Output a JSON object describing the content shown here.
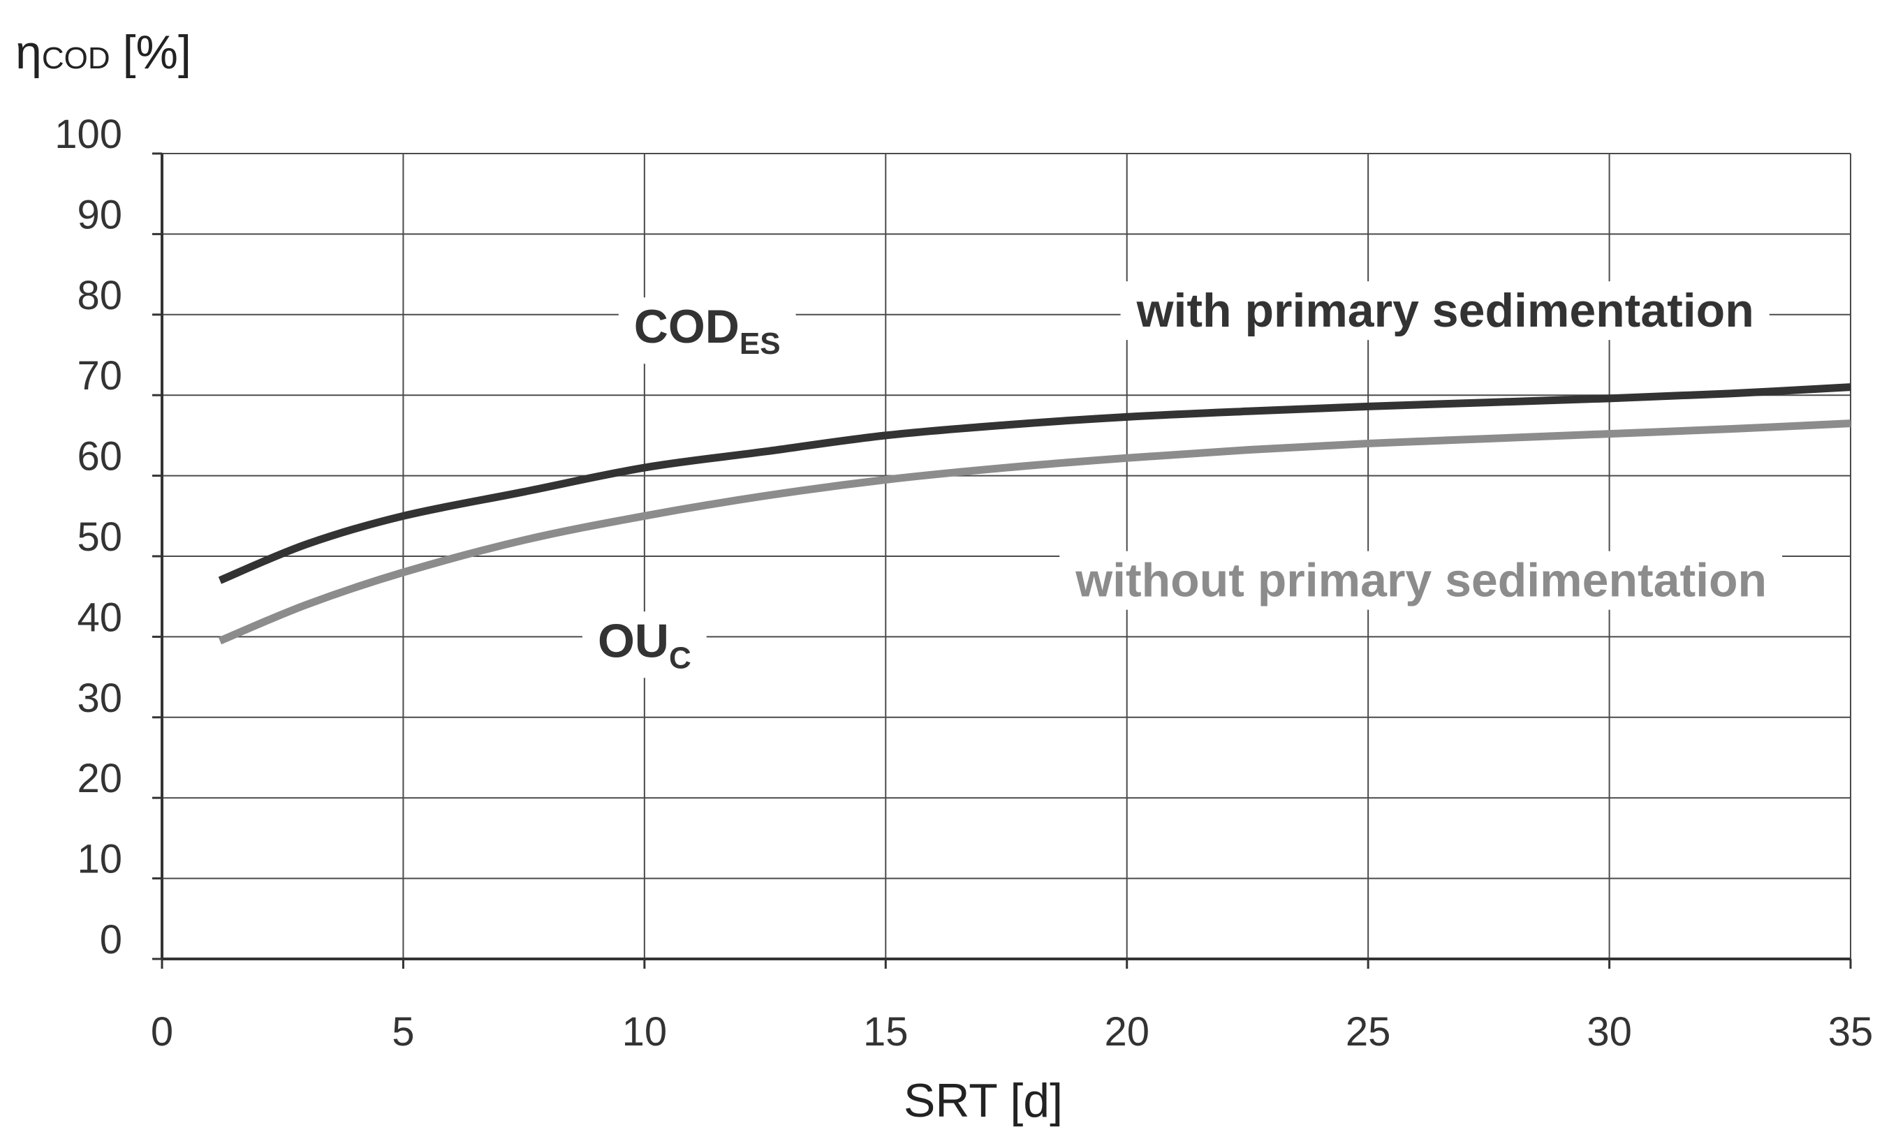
{
  "chart_data": {
    "type": "line",
    "title": "",
    "xlabel": "SRT [d]",
    "ylabel": {
      "symbol": "η",
      "subscript": "COD",
      "unit": "[%]"
    },
    "xlim": [
      0,
      35
    ],
    "ylim": [
      0,
      100
    ],
    "xticks": [
      0,
      5,
      10,
      15,
      20,
      25,
      30,
      35
    ],
    "yticks": [
      0,
      10,
      20,
      30,
      40,
      50,
      60,
      70,
      80,
      90,
      100
    ],
    "grid": true,
    "series": [
      {
        "name": "with primary sedimentation",
        "color": "#333333",
        "x": [
          1.2,
          3,
          5,
          7.5,
          10,
          12.5,
          15,
          17.5,
          20,
          22.5,
          25,
          27.5,
          30,
          32.5,
          35
        ],
        "y": [
          47,
          51.5,
          55,
          58,
          61,
          63,
          65,
          66.3,
          67.3,
          68,
          68.6,
          69.1,
          69.6,
          70.2,
          71
        ]
      },
      {
        "name": "without primary sedimentation",
        "color": "#8c8c8c",
        "x": [
          1.2,
          3,
          5,
          7.5,
          10,
          12.5,
          15,
          17.5,
          20,
          22.5,
          25,
          27.5,
          30,
          32.5,
          35
        ],
        "y": [
          39.5,
          44,
          48,
          52,
          55,
          57.5,
          59.5,
          61,
          62.2,
          63.2,
          64,
          64.6,
          65.2,
          65.8,
          66.5
        ]
      }
    ],
    "annotations": [
      {
        "id": "codes",
        "text": "COD",
        "subscript": "ES",
        "x": 11.3,
        "y": 76.5,
        "color": "#333333"
      },
      {
        "id": "ouc",
        "text": "OU",
        "subscript": "C",
        "x": 10,
        "y": 37.5,
        "color": "#333333"
      },
      {
        "id": "with-label",
        "text": "with primary sedimentation",
        "x": 26.6,
        "y": 78.5,
        "color": "#333333"
      },
      {
        "id": "without-label",
        "text": "without primary sedimentation",
        "x": 26.1,
        "y": 45,
        "color": "#8c8c8c"
      }
    ]
  }
}
